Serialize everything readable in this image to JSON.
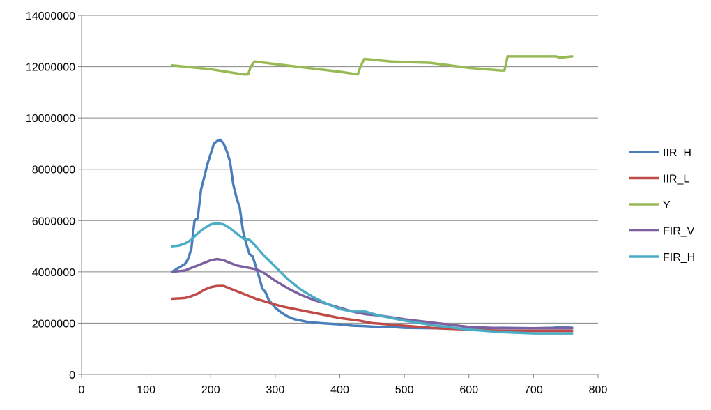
{
  "chart_data": {
    "type": "line",
    "title": "",
    "xlabel": "",
    "ylabel": "",
    "xlim": [
      0,
      800
    ],
    "ylim": [
      0,
      14000000
    ],
    "x_ticks": [
      0,
      100,
      200,
      300,
      400,
      500,
      600,
      700,
      800
    ],
    "x_tick_labels": [
      "0",
      "100",
      "200",
      "300",
      "400",
      "500",
      "600",
      "700",
      "800"
    ],
    "y_ticks": [
      0,
      2000000,
      4000000,
      6000000,
      8000000,
      10000000,
      12000000,
      14000000
    ],
    "y_tick_labels": [
      "0",
      "2000000",
      "4000000",
      "6000000",
      "8000000",
      "10000000",
      "12000000",
      "14000000"
    ],
    "grid": "horizontal",
    "legend_position": "right",
    "series": [
      {
        "name": "IIR_H",
        "color": "#4a7ebb",
        "x": [
          140,
          150,
          160,
          165,
          170,
          175,
          180,
          185,
          190,
          195,
          200,
          205,
          210,
          215,
          220,
          225,
          230,
          235,
          240,
          245,
          250,
          255,
          260,
          265,
          270,
          275,
          280,
          285,
          290,
          300,
          310,
          320,
          330,
          340,
          350,
          370,
          400,
          420,
          440,
          460,
          480,
          500,
          550,
          600,
          650,
          700,
          730,
          745,
          760
        ],
        "y": [
          4000000,
          4150000,
          4300000,
          4500000,
          4900000,
          6000000,
          6100000,
          7200000,
          7700000,
          8200000,
          8600000,
          9000000,
          9100000,
          9150000,
          9000000,
          8700000,
          8300000,
          7400000,
          6900000,
          6500000,
          5600000,
          5100000,
          4700000,
          4600000,
          4200000,
          3800000,
          3350000,
          3200000,
          2900000,
          2600000,
          2400000,
          2250000,
          2150000,
          2100000,
          2050000,
          2000000,
          1950000,
          1900000,
          1880000,
          1850000,
          1850000,
          1820000,
          1800000,
          1780000,
          1820000,
          1800000,
          1820000,
          1850000,
          1820000
        ]
      },
      {
        "name": "IIR_L",
        "color": "#be4b48",
        "x": [
          140,
          160,
          170,
          180,
          190,
          200,
          210,
          220,
          230,
          250,
          270,
          290,
          310,
          330,
          350,
          380,
          400,
          430,
          450,
          500,
          550,
          600,
          650,
          700,
          760
        ],
        "y": [
          2950000,
          2980000,
          3050000,
          3150000,
          3300000,
          3400000,
          3450000,
          3450000,
          3350000,
          3150000,
          2950000,
          2800000,
          2650000,
          2550000,
          2450000,
          2300000,
          2200000,
          2100000,
          2000000,
          1900000,
          1800000,
          1750000,
          1700000,
          1700000,
          1700000
        ]
      },
      {
        "name": "Y",
        "color": "#98b954",
        "x": [
          140,
          200,
          250,
          258,
          262,
          268,
          300,
          350,
          400,
          428,
          432,
          438,
          480,
          540,
          600,
          650,
          655,
          660,
          700,
          735,
          740,
          760
        ],
        "y": [
          12050000,
          11900000,
          11700000,
          11700000,
          12000000,
          12200000,
          12100000,
          11950000,
          11800000,
          11700000,
          12000000,
          12300000,
          12200000,
          12150000,
          11950000,
          11850000,
          11850000,
          12400000,
          12400000,
          12400000,
          12350000,
          12400000
        ]
      },
      {
        "name": "FIR_V",
        "color": "#7d60a0",
        "x": [
          140,
          160,
          170,
          180,
          190,
          200,
          210,
          220,
          230,
          240,
          250,
          260,
          270,
          280,
          300,
          320,
          340,
          360,
          380,
          400,
          420,
          440,
          460,
          500,
          550,
          600,
          650,
          700,
          760
        ],
        "y": [
          4000000,
          4050000,
          4150000,
          4250000,
          4350000,
          4450000,
          4500000,
          4450000,
          4350000,
          4250000,
          4200000,
          4150000,
          4100000,
          4000000,
          3650000,
          3350000,
          3100000,
          2900000,
          2750000,
          2600000,
          2450000,
          2350000,
          2300000,
          2150000,
          2000000,
          1850000,
          1800000,
          1800000,
          1800000
        ]
      },
      {
        "name": "FIR_H",
        "color": "#4bacc6",
        "x": [
          140,
          150,
          160,
          170,
          180,
          190,
          200,
          210,
          220,
          230,
          240,
          250,
          260,
          270,
          280,
          300,
          320,
          340,
          360,
          380,
          400,
          420,
          440,
          460,
          500,
          550,
          600,
          650,
          700,
          760
        ],
        "y": [
          5000000,
          5020000,
          5100000,
          5250000,
          5500000,
          5700000,
          5850000,
          5900000,
          5850000,
          5700000,
          5500000,
          5300000,
          5250000,
          5000000,
          4700000,
          4200000,
          3700000,
          3300000,
          3000000,
          2750000,
          2550000,
          2450000,
          2450000,
          2300000,
          2100000,
          1900000,
          1750000,
          1650000,
          1600000,
          1600000
        ]
      }
    ]
  }
}
